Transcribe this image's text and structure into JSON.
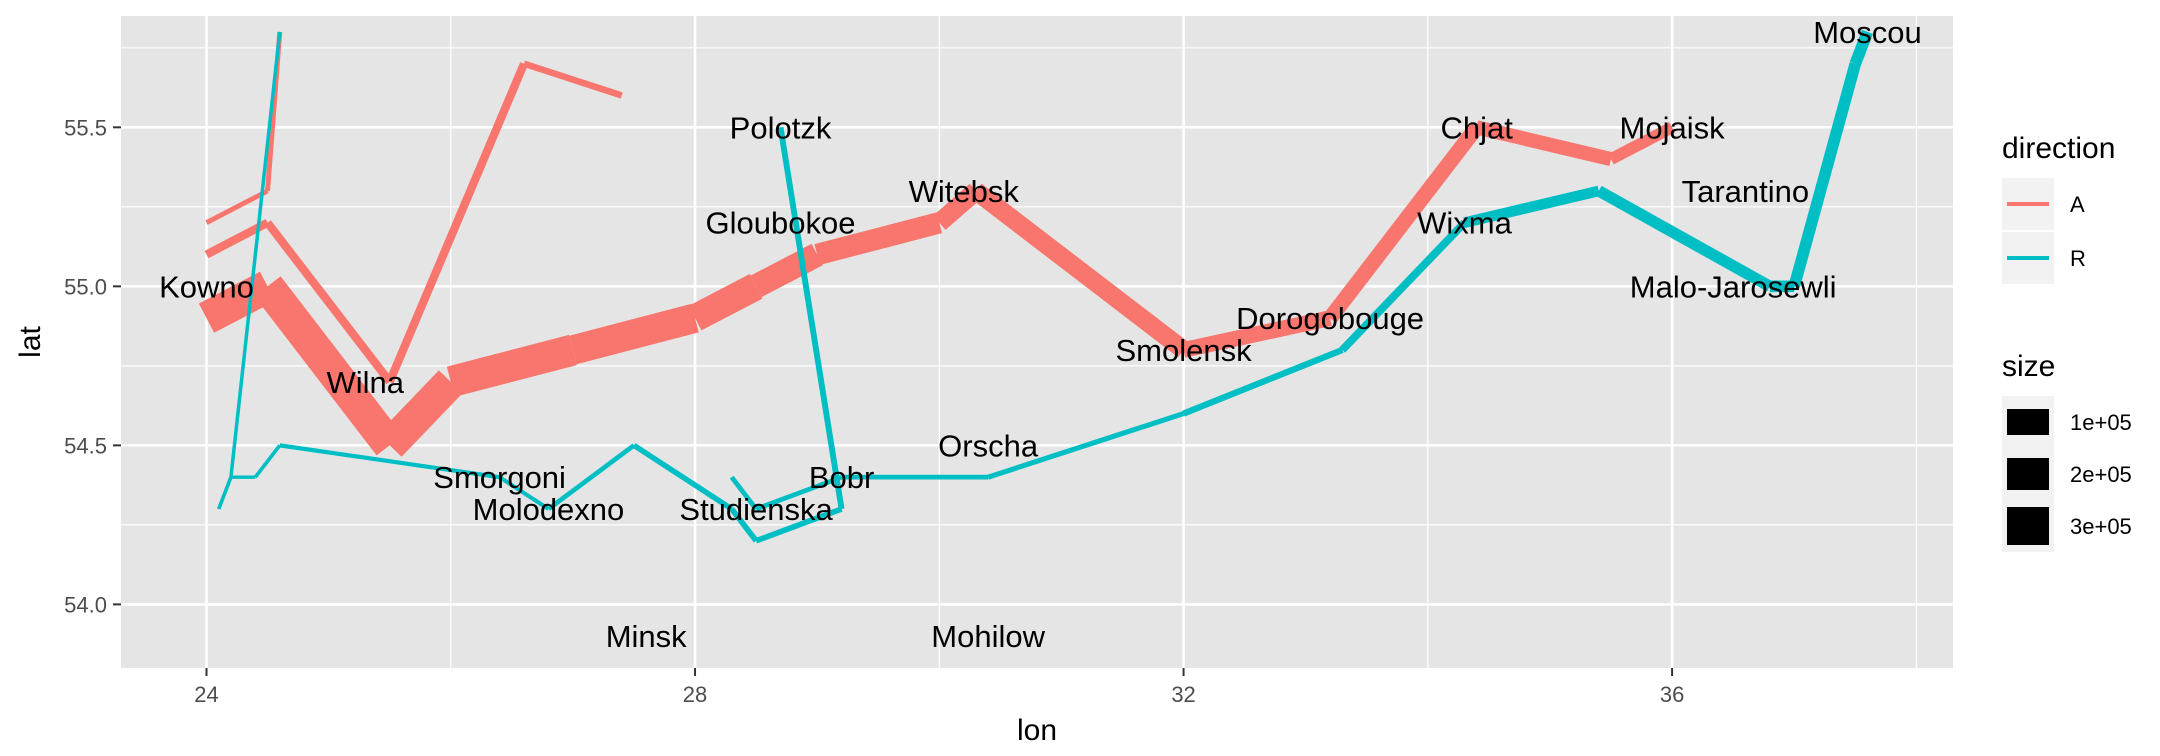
{
  "chart_data": {
    "type": "line",
    "title": "",
    "xlabel": "lon",
    "ylabel": "lat",
    "xlim": [
      23.3,
      38.3
    ],
    "ylim": [
      53.8,
      55.85
    ],
    "x_ticks": [
      24,
      28,
      32,
      36
    ],
    "x_tick_labels": [
      "24",
      "28",
      "32",
      "36"
    ],
    "x_minor_ticks": [
      26,
      30,
      34,
      38
    ],
    "y_ticks": [
      54.0,
      54.5,
      55.0,
      55.5
    ],
    "y_tick_labels": [
      "54.0",
      "54.5",
      "55.0",
      "55.5"
    ],
    "y_minor_ticks": [
      54.25,
      54.75,
      55.25,
      55.75
    ],
    "panel_background": "#e5e5e5",
    "grid_color": "#ffffff",
    "grid": true,
    "legend_placement": "right",
    "direction_legend": {
      "title": "direction",
      "items": [
        {
          "label": "A",
          "color": "#f8766d"
        },
        {
          "label": "R",
          "color": "#00bfc4"
        }
      ]
    },
    "size_legend": {
      "title": "size",
      "items": [
        {
          "label": "1e+05",
          "value": 100000
        },
        {
          "label": "2e+05",
          "value": 200000
        },
        {
          "label": "3e+05",
          "value": 300000
        }
      ]
    },
    "series": [
      {
        "direction": "A",
        "group": 1,
        "color": "#f8766d",
        "points": [
          {
            "lon": 24.0,
            "lat": 54.9,
            "survivors": 340000
          },
          {
            "lon": 24.5,
            "lat": 55.0,
            "survivors": 340000
          },
          {
            "lon": 25.5,
            "lat": 54.5,
            "survivors": 340000
          },
          {
            "lon": 26.0,
            "lat": 54.7,
            "survivors": 320000
          },
          {
            "lon": 27.0,
            "lat": 54.8,
            "survivors": 300000
          },
          {
            "lon": 28.0,
            "lat": 54.9,
            "survivors": 280000
          },
          {
            "lon": 28.5,
            "lat": 55.0,
            "survivors": 240000
          },
          {
            "lon": 29.0,
            "lat": 55.1,
            "survivors": 210000
          },
          {
            "lon": 30.0,
            "lat": 55.2,
            "survivors": 180000
          },
          {
            "lon": 30.3,
            "lat": 55.3,
            "survivors": 175000
          },
          {
            "lon": 32.0,
            "lat": 54.8,
            "survivors": 145000
          },
          {
            "lon": 33.2,
            "lat": 54.9,
            "survivors": 140000
          },
          {
            "lon": 34.4,
            "lat": 55.5,
            "survivors": 127100
          },
          {
            "lon": 35.5,
            "lat": 55.4,
            "survivors": 100000
          },
          {
            "lon": 36.0,
            "lat": 55.5,
            "survivors": 100000
          }
        ]
      },
      {
        "direction": "R",
        "group": 1,
        "color": "#00bfc4",
        "points": [
          {
            "lon": 37.6,
            "lat": 55.8,
            "survivors": 100000
          },
          {
            "lon": 37.5,
            "lat": 55.7,
            "survivors": 98000
          },
          {
            "lon": 37.0,
            "lat": 55.0,
            "survivors": 97000
          },
          {
            "lon": 36.8,
            "lat": 55.0,
            "survivors": 96000
          },
          {
            "lon": 35.4,
            "lat": 55.3,
            "survivors": 87000
          },
          {
            "lon": 34.3,
            "lat": 55.2,
            "survivors": 55000
          },
          {
            "lon": 33.3,
            "lat": 54.8,
            "survivors": 37000
          },
          {
            "lon": 32.0,
            "lat": 54.6,
            "survivors": 24000
          },
          {
            "lon": 30.4,
            "lat": 54.4,
            "survivors": 20000
          },
          {
            "lon": 29.2,
            "lat": 54.4,
            "survivors": 20000
          },
          {
            "lon": 28.5,
            "lat": 54.3,
            "survivors": 20000
          },
          {
            "lon": 28.3,
            "lat": 54.4,
            "survivors": 20000
          }
        ]
      },
      {
        "direction": "A",
        "group": 2,
        "color": "#f8766d",
        "points": [
          {
            "lon": 24.0,
            "lat": 55.1,
            "survivors": 60000
          },
          {
            "lon": 24.5,
            "lat": 55.2,
            "survivors": 60000
          },
          {
            "lon": 25.5,
            "lat": 54.7,
            "survivors": 60000
          },
          {
            "lon": 26.6,
            "lat": 55.7,
            "survivors": 40000
          },
          {
            "lon": 27.4,
            "lat": 55.6,
            "survivors": 33000
          }
        ]
      },
      {
        "direction": "R",
        "group": 2,
        "color": "#00bfc4",
        "points": [
          {
            "lon": 28.7,
            "lat": 55.5,
            "survivors": 33000
          },
          {
            "lon": 29.2,
            "lat": 54.3,
            "survivors": 30000
          },
          {
            "lon": 28.5,
            "lat": 54.2,
            "survivors": 30000
          },
          {
            "lon": 28.3,
            "lat": 54.3,
            "survivors": 28000
          },
          {
            "lon": 27.5,
            "lat": 54.5,
            "survivors": 20000
          },
          {
            "lon": 26.8,
            "lat": 54.3,
            "survivors": 12000
          },
          {
            "lon": 26.4,
            "lat": 54.4,
            "survivors": 14000
          },
          {
            "lon": 24.6,
            "lat": 54.5,
            "survivors": 8000
          },
          {
            "lon": 24.4,
            "lat": 54.4,
            "survivors": 4000
          },
          {
            "lon": 24.2,
            "lat": 54.4,
            "survivors": 4000
          },
          {
            "lon": 24.1,
            "lat": 54.3,
            "survivors": 4000
          }
        ]
      },
      {
        "direction": "A",
        "group": 3,
        "color": "#f8766d",
        "points": [
          {
            "lon": 24.0,
            "lat": 55.2,
            "survivors": 22000
          },
          {
            "lon": 24.5,
            "lat": 55.3,
            "survivors": 22000
          },
          {
            "lon": 24.6,
            "lat": 55.8,
            "survivors": 6000
          }
        ]
      },
      {
        "direction": "R",
        "group": 3,
        "color": "#00bfc4",
        "points": [
          {
            "lon": 24.6,
            "lat": 55.8,
            "survivors": 6000
          },
          {
            "lon": 24.2,
            "lat": 54.4,
            "survivors": 6000
          },
          {
            "lon": 24.1,
            "lat": 54.3,
            "survivors": 6000
          }
        ]
      }
    ],
    "cities": [
      {
        "name": "Kowno",
        "lon": 24.0,
        "lat": 55.0
      },
      {
        "name": "Wilna",
        "lon": 25.3,
        "lat": 54.7
      },
      {
        "name": "Smorgoni",
        "lon": 26.4,
        "lat": 54.4
      },
      {
        "name": "Molodexno",
        "lon": 26.8,
        "lat": 54.3
      },
      {
        "name": "Gloubokoe",
        "lon": 28.7,
        "lat": 55.2
      },
      {
        "name": "Minsk",
        "lon": 27.6,
        "lat": 53.9
      },
      {
        "name": "Studienska",
        "lon": 28.5,
        "lat": 54.3
      },
      {
        "name": "Polotzk",
        "lon": 28.7,
        "lat": 55.5
      },
      {
        "name": "Bobr",
        "lon": 29.2,
        "lat": 54.4
      },
      {
        "name": "Witebsk",
        "lon": 30.2,
        "lat": 55.3
      },
      {
        "name": "Orscha",
        "lon": 30.4,
        "lat": 54.5
      },
      {
        "name": "Mohilow",
        "lon": 30.4,
        "lat": 53.9
      },
      {
        "name": "Smolensk",
        "lon": 32.0,
        "lat": 54.8
      },
      {
        "name": "Dorogobouge",
        "lon": 33.2,
        "lat": 54.9
      },
      {
        "name": "Wixma",
        "lon": 34.3,
        "lat": 55.2
      },
      {
        "name": "Chjat",
        "lon": 34.4,
        "lat": 55.5
      },
      {
        "name": "Mojaisk",
        "lon": 36.0,
        "lat": 55.5
      },
      {
        "name": "Moscou",
        "lon": 37.6,
        "lat": 55.8
      },
      {
        "name": "Tarantino",
        "lon": 36.6,
        "lat": 55.3
      },
      {
        "name": "Malo-Jarosewli",
        "lon": 36.5,
        "lat": 55.0
      }
    ]
  }
}
